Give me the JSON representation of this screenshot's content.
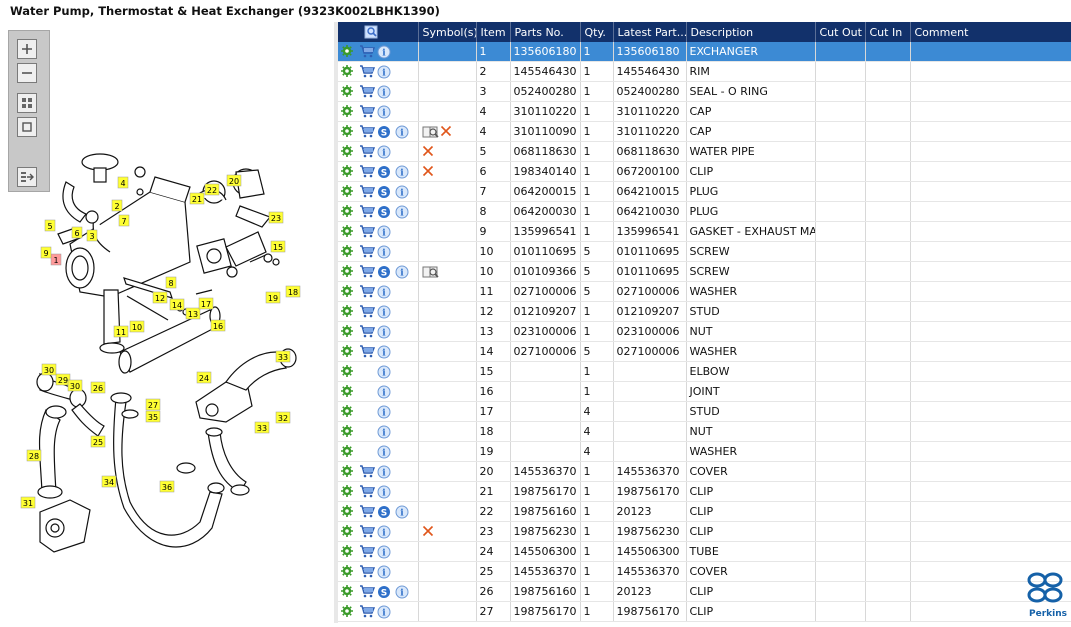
{
  "window": {
    "title": "Water Pump, Thermostat & Heat Exchanger (9323K002LBHK1390)"
  },
  "toolbox": {
    "buttons": [
      {
        "name": "zoom-in",
        "icon": "plus-icon"
      },
      {
        "name": "zoom-out",
        "icon": "minus-icon"
      },
      {
        "name": "fit-all",
        "icon": "grid-icon"
      },
      {
        "name": "fit-window",
        "icon": "square-icon"
      },
      {
        "name": "export",
        "icon": "export-icon"
      }
    ]
  },
  "grid": {
    "columns": {
      "actions": "",
      "symbols": "Symbol(s)",
      "item": "Item",
      "parts_no": "Parts No.",
      "qty": "Qty.",
      "latest": "Latest Part...",
      "description": "Description",
      "cut_out": "Cut Out",
      "cut_in": "Cut In",
      "comment": "Comment"
    },
    "rows": [
      {
        "item": "1",
        "parts_no": "135606180",
        "qty": "1",
        "latest": "135606180",
        "description": "EXCHANGER",
        "cart": true,
        "s": false,
        "info": true,
        "book": false,
        "cross": false,
        "selected": true
      },
      {
        "item": "2",
        "parts_no": "145546430",
        "qty": "1",
        "latest": "145546430",
        "description": "RIM",
        "cart": true,
        "s": false,
        "info": true,
        "book": false,
        "cross": false
      },
      {
        "item": "3",
        "parts_no": "052400280",
        "qty": "1",
        "latest": "052400280",
        "description": "SEAL - O RING",
        "cart": true,
        "s": false,
        "info": true,
        "book": false,
        "cross": false
      },
      {
        "item": "4",
        "parts_no": "310110220",
        "qty": "1",
        "latest": "310110220",
        "description": "CAP",
        "cart": true,
        "s": false,
        "info": true,
        "book": false,
        "cross": false
      },
      {
        "item": "4",
        "parts_no": "310110090",
        "qty": "1",
        "latest": "310110220",
        "description": "CAP",
        "cart": true,
        "s": true,
        "info": true,
        "book": true,
        "cross": true
      },
      {
        "item": "5",
        "parts_no": "068118630",
        "qty": "1",
        "latest": "068118630",
        "description": "WATER PIPE",
        "cart": true,
        "s": false,
        "info": true,
        "book": false,
        "cross": true
      },
      {
        "item": "6",
        "parts_no": "198340140",
        "qty": "1",
        "latest": "067200100",
        "description": "CLIP",
        "cart": true,
        "s": true,
        "info": true,
        "book": false,
        "cross": true
      },
      {
        "item": "7",
        "parts_no": "064200015",
        "qty": "1",
        "latest": "064210015",
        "description": "PLUG",
        "cart": true,
        "s": true,
        "info": true,
        "book": false,
        "cross": false
      },
      {
        "item": "8",
        "parts_no": "064200030",
        "qty": "1",
        "latest": "064210030",
        "description": "PLUG",
        "cart": true,
        "s": true,
        "info": true,
        "book": false,
        "cross": false
      },
      {
        "item": "9",
        "parts_no": "135996541",
        "qty": "1",
        "latest": "135996541",
        "description": "GASKET - EXHAUST MANI",
        "cart": true,
        "s": false,
        "info": true,
        "book": false,
        "cross": false
      },
      {
        "item": "10",
        "parts_no": "010110695",
        "qty": "5",
        "latest": "010110695",
        "description": "SCREW",
        "cart": true,
        "s": false,
        "info": true,
        "book": false,
        "cross": false
      },
      {
        "item": "10",
        "parts_no": "010109366",
        "qty": "5",
        "latest": "010110695",
        "description": "SCREW",
        "cart": true,
        "s": true,
        "info": true,
        "book": true,
        "cross": false
      },
      {
        "item": "11",
        "parts_no": "027100006",
        "qty": "5",
        "latest": "027100006",
        "description": "WASHER",
        "cart": true,
        "s": false,
        "info": true,
        "book": false,
        "cross": false
      },
      {
        "item": "12",
        "parts_no": "012109207",
        "qty": "1",
        "latest": "012109207",
        "description": "STUD",
        "cart": true,
        "s": false,
        "info": true,
        "book": false,
        "cross": false
      },
      {
        "item": "13",
        "parts_no": "023100006",
        "qty": "1",
        "latest": "023100006",
        "description": "NUT",
        "cart": true,
        "s": false,
        "info": true,
        "book": false,
        "cross": false
      },
      {
        "item": "14",
        "parts_no": "027100006",
        "qty": "5",
        "latest": "027100006",
        "description": "WASHER",
        "cart": true,
        "s": false,
        "info": true,
        "book": false,
        "cross": false
      },
      {
        "item": "15",
        "parts_no": "",
        "qty": "1",
        "latest": "",
        "description": "ELBOW",
        "cart": false,
        "s": false,
        "info": true,
        "book": false,
        "cross": false
      },
      {
        "item": "16",
        "parts_no": "",
        "qty": "1",
        "latest": "",
        "description": "JOINT",
        "cart": false,
        "s": false,
        "info": true,
        "book": false,
        "cross": false
      },
      {
        "item": "17",
        "parts_no": "",
        "qty": "4",
        "latest": "",
        "description": "STUD",
        "cart": false,
        "s": false,
        "info": true,
        "book": false,
        "cross": false
      },
      {
        "item": "18",
        "parts_no": "",
        "qty": "4",
        "latest": "",
        "description": "NUT",
        "cart": false,
        "s": false,
        "info": true,
        "book": false,
        "cross": false
      },
      {
        "item": "19",
        "parts_no": "",
        "qty": "4",
        "latest": "",
        "description": "WASHER",
        "cart": false,
        "s": false,
        "info": true,
        "book": false,
        "cross": false
      },
      {
        "item": "20",
        "parts_no": "145536370",
        "qty": "1",
        "latest": "145536370",
        "description": "COVER",
        "cart": true,
        "s": false,
        "info": true,
        "book": false,
        "cross": false
      },
      {
        "item": "21",
        "parts_no": "198756170",
        "qty": "1",
        "latest": "198756170",
        "description": "CLIP",
        "cart": true,
        "s": false,
        "info": true,
        "book": false,
        "cross": false
      },
      {
        "item": "22",
        "parts_no": "198756160",
        "qty": "1",
        "latest": "20123",
        "description": "CLIP",
        "cart": true,
        "s": true,
        "info": true,
        "book": false,
        "cross": false
      },
      {
        "item": "23",
        "parts_no": "198756230",
        "qty": "1",
        "latest": "198756230",
        "description": "CLIP",
        "cart": true,
        "s": false,
        "info": true,
        "book": false,
        "cross": true
      },
      {
        "item": "24",
        "parts_no": "145506300",
        "qty": "1",
        "latest": "145506300",
        "description": "TUBE",
        "cart": true,
        "s": false,
        "info": true,
        "book": false,
        "cross": false
      },
      {
        "item": "25",
        "parts_no": "145536370",
        "qty": "1",
        "latest": "145536370",
        "description": "COVER",
        "cart": true,
        "s": false,
        "info": true,
        "book": false,
        "cross": false
      },
      {
        "item": "26",
        "parts_no": "198756160",
        "qty": "1",
        "latest": "20123",
        "description": "CLIP",
        "cart": true,
        "s": true,
        "info": true,
        "book": false,
        "cross": false
      },
      {
        "item": "27",
        "parts_no": "198756170",
        "qty": "1",
        "latest": "198756170",
        "description": "CLIP",
        "cart": true,
        "s": false,
        "info": true,
        "book": false,
        "cross": false
      }
    ]
  },
  "diagram": {
    "callouts": [
      "1",
      "2",
      "3",
      "4",
      "5",
      "6",
      "7",
      "8",
      "9",
      "10",
      "11",
      "12",
      "13",
      "14",
      "15",
      "16",
      "17",
      "18",
      "19",
      "20",
      "21",
      "22",
      "23",
      "24",
      "25",
      "26",
      "27",
      "28",
      "29",
      "30",
      "30",
      "31",
      "32",
      "33",
      "33",
      "34",
      "35",
      "36"
    ]
  },
  "logo": {
    "text": "Perkins",
    "color": "#1561a8"
  },
  "colors": {
    "header_bg": "#12316b",
    "selected_row": "#3c8ad4",
    "callout_fill": "#ffff33",
    "callout_selected": "#ff9a9a",
    "cross": "#e0561b"
  }
}
